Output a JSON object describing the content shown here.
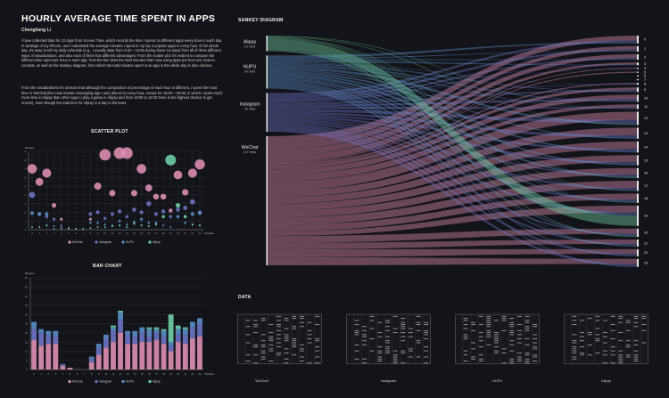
{
  "header": {
    "title": "HOURLY AVERAGE TIME SPENT IN APPS",
    "author": "Chengliang Li",
    "intro_1": "I have collected data for 10 days from Screen Time, which records the time I spend on different apps every hour in each day. In Settings of my iPhone, and I calculated the average minutes I spent in my top 4 popular apps in every hour of the whole day. It's easy to tell my daily schedule (e.g., I usually slept from 3:00 ~ 10:00 during these 10 days) from all of three different ways of visualizations, and also each of them has different advantages: From the scatter plot it's evident to compare the different time spent per hour in each app; from the bar chart the total minutes that I was using apps per hour are clear to contrast, as well as the Sankey diagram, from which the total minutes spent in an app in the whole day is also obvious.",
    "intro_2": "From the visualizations it's obvious that although the composition of percentage of each hour is different, I spent the most time in WeChat (the main instant messaging app I use) almost in every hour, except for 19:00 ~ 20:00, in which I spent much more time in Alipay than other apps (I play a game in Alipay and from 19:00 to 19:30 there is the highest chance to get scores), even though the total time for Alipay in a day is the least."
  },
  "sections": {
    "scatter": "SCATTER PLOT",
    "bar": "BAR CHART",
    "sankey": "SANKEY DIAGRAM",
    "data": "DATA"
  },
  "colors": {
    "WeChat": "#e08fb3",
    "Instagram": "#6e74c8",
    "HUPU": "#5a8fc9",
    "Alipay": "#6fd2a8",
    "background": "#131419"
  },
  "chart_data": [
    {
      "type": "scatter",
      "title": "SCATTER PLOT",
      "ylabel": "Minutes",
      "xlabel": "Timeline",
      "x": [
        0,
        1,
        2,
        3,
        4,
        5,
        6,
        7,
        8,
        9,
        10,
        11,
        12,
        13,
        14,
        15,
        16,
        17,
        18,
        19,
        20,
        21,
        22,
        23
      ],
      "ylim": [
        0,
        9
      ],
      "series": [
        {
          "name": "WeChat",
          "values": [
            7,
            5.5,
            6.5,
            2.8,
            1.2,
            0.2,
            0.1,
            0.1,
            1.2,
            5,
            8.6,
            4.2,
            8.8,
            8.8,
            4.2,
            7,
            4.8,
            3.8,
            3.8,
            2.2,
            6.3,
            4.3,
            6.5,
            7.5
          ]
        },
        {
          "name": "Instagram",
          "values": [
            4,
            1.8,
            1.5,
            1.2,
            0.5,
            0.1,
            0.1,
            0.1,
            1.8,
            2,
            1.3,
            1.8,
            2.1,
            1.5,
            2.3,
            2,
            3,
            1.8,
            2.1,
            1.5,
            2.3,
            2.5,
            3.2,
            2
          ]
        },
        {
          "name": "HUPU",
          "values": [
            1.9,
            1.8,
            1.8,
            0.4,
            0.3,
            0.1,
            0.1,
            0.1,
            0.8,
            0.8,
            0.6,
            0.5,
            1,
            0.6,
            0.9,
            1.2,
            0.8,
            0.8,
            0.5,
            0.3,
            1.5,
            0.8,
            1.8,
            1.9
          ]
        },
        {
          "name": "Alipay",
          "values": [
            0.3,
            0.3,
            0.5,
            0.1,
            0.1,
            0.1,
            0.1,
            0.1,
            0.2,
            0.3,
            0.3,
            0.4,
            0.5,
            0.3,
            0.7,
            0.5,
            0.4,
            0.6,
            1.5,
            8,
            2.8,
            1.5,
            0.6,
            0.5
          ]
        }
      ],
      "legend": [
        "WeChat",
        "Instagram",
        "HUPU",
        "Alipay"
      ]
    },
    {
      "type": "bar",
      "title": "BAR CHART",
      "ylabel": "Minutes",
      "xlabel": "Timeline",
      "ylim": [
        0,
        50
      ],
      "yticks": [
        0,
        5,
        10,
        15,
        20,
        25,
        30,
        35,
        40,
        45,
        50
      ],
      "categories": [
        "0",
        "1",
        "2",
        "3",
        "4",
        "5",
        "6",
        "7",
        "8",
        "9",
        "10",
        "11",
        "12",
        "13",
        "14",
        "15",
        "16",
        "17",
        "18",
        "19",
        "20",
        "21",
        "22",
        "23"
      ],
      "series": [
        {
          "name": "WeChat",
          "values": [
            16,
            13,
            14,
            14,
            2,
            1,
            0,
            0,
            4,
            8,
            12,
            15,
            20,
            14,
            14,
            15,
            15,
            16,
            14,
            10,
            15,
            14,
            17,
            18
          ]
        },
        {
          "name": "Instagram",
          "values": [
            6,
            7,
            5,
            4,
            1,
            0,
            0,
            0,
            2,
            4,
            5,
            6,
            7,
            5,
            4,
            5,
            3,
            4,
            4,
            3,
            4,
            5,
            6,
            7
          ]
        },
        {
          "name": "HUPU",
          "values": [
            4,
            2,
            2,
            3,
            0,
            0,
            0,
            0,
            1,
            2,
            2,
            2,
            4,
            2,
            3,
            3,
            4,
            2,
            3,
            2,
            3,
            3,
            3,
            3
          ]
        },
        {
          "name": "Alipay",
          "values": [
            0,
            0,
            0,
            0,
            0,
            0,
            0,
            0,
            0,
            0,
            0,
            1,
            1,
            0,
            0,
            0,
            1,
            1,
            1,
            15,
            2,
            1,
            0,
            0
          ]
        }
      ],
      "legend": [
        "WeChat",
        "Instagram",
        "HUPU",
        "Alipay"
      ]
    },
    {
      "type": "sankey",
      "title": "SANKEY DIAGRAM",
      "sources": [
        {
          "name": "Alipay",
          "total": "14 mins",
          "value": 14
        },
        {
          "name": "HUPU",
          "total": "30 mins",
          "value": 30
        },
        {
          "name": "Instagram",
          "total": "35 mins",
          "value": 35
        },
        {
          "name": "WeChat",
          "total": "117 mins",
          "value": 117
        }
      ],
      "targets": [
        "0",
        "1",
        "2",
        "3",
        "4",
        "5",
        "6",
        "7",
        "8",
        "9",
        "10",
        "11",
        "12",
        "13",
        "14",
        "15",
        "16",
        "17",
        "18",
        "19",
        "20",
        "21",
        "22",
        "23"
      ],
      "target_values": [
        4.2,
        3,
        3,
        1.5,
        0.6,
        0.3,
        0.3,
        0.3,
        1,
        2.5,
        3.8,
        2.5,
        7.2,
        6,
        6,
        5.5,
        5.5,
        5.5,
        5,
        11,
        4.5,
        3.8,
        3.8,
        4.3
      ]
    }
  ],
  "data_tables": [
    {
      "caption": "WeChat"
    },
    {
      "caption": "Instagram"
    },
    {
      "caption": "HUPU"
    },
    {
      "caption": "Alipay"
    }
  ]
}
